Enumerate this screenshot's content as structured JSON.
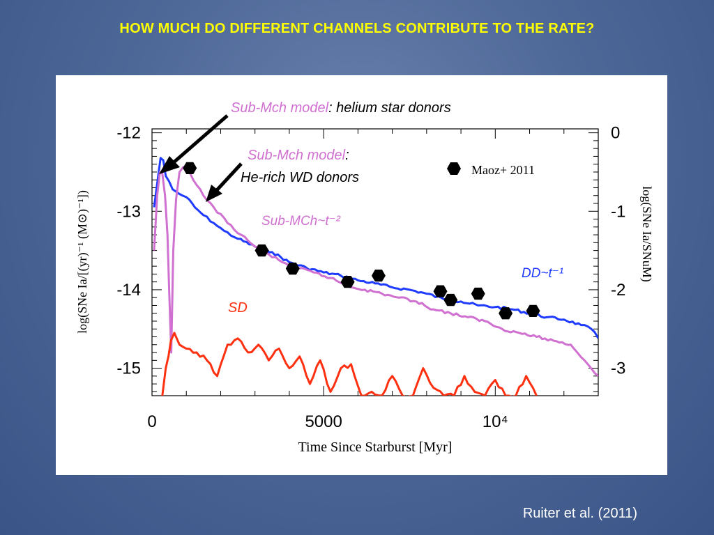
{
  "slide": {
    "title": "HOW MUCH DO DIFFERENT CHANNELS CONTRIBUTE TO THE RATE?",
    "citation": "Ruiter et al. (2011)"
  },
  "colors": {
    "background": "#4e6898",
    "title": "#ffff00",
    "blue_series": "#1f3bff",
    "magenta_series": "#d070d0",
    "red_series": "#ff3010",
    "points": "#000000"
  },
  "chart_data": {
    "type": "line",
    "xlabel": "Time Since Starburst [Myr]",
    "ylabel": "log(SNe Ia/[(yr)⁻¹ (M⊙)⁻¹])",
    "ylabel_right": "log(SNe Ia/SNuM)",
    "xlim": [
      0,
      13000
    ],
    "ylim": [
      -15.35,
      -11.95
    ],
    "x_ticks": [
      {
        "value": 0,
        "label": "0"
      },
      {
        "value": 5000,
        "label": "5000"
      },
      {
        "value": 10000,
        "label": "10⁴"
      }
    ],
    "y_ticks": [
      {
        "value": -12,
        "label": "-12"
      },
      {
        "value": -13,
        "label": "-13"
      },
      {
        "value": -14,
        "label": "-14"
      },
      {
        "value": -15,
        "label": "-15"
      }
    ],
    "y_ticks_right": [
      {
        "value": -12,
        "label": "0"
      },
      {
        "value": -13,
        "label": "-1"
      },
      {
        "value": -14,
        "label": "-2"
      },
      {
        "value": -15,
        "label": "-3"
      }
    ],
    "grid": false,
    "legend_position": "top-right",
    "series": [
      {
        "name": "DD~t⁻¹",
        "color": "#1f3bff",
        "x": [
          60,
          150,
          250,
          330,
          400,
          500,
          600,
          800,
          1000,
          1250,
          1500,
          1800,
          2100,
          2500,
          3000,
          3500,
          4000,
          4500,
          5000,
          5500,
          6000,
          6500,
          7000,
          7500,
          8000,
          8500,
          9000,
          9500,
          10000,
          10500,
          11000,
          11500,
          12000,
          12500,
          12800,
          13000
        ],
        "y": [
          -12.95,
          -12.65,
          -12.32,
          -12.35,
          -12.55,
          -12.62,
          -12.72,
          -12.78,
          -12.82,
          -12.95,
          -13.05,
          -13.15,
          -13.25,
          -13.35,
          -13.45,
          -13.52,
          -13.65,
          -13.72,
          -13.78,
          -13.82,
          -13.88,
          -13.92,
          -13.97,
          -14.0,
          -14.05,
          -14.12,
          -14.15,
          -14.2,
          -14.22,
          -14.25,
          -14.3,
          -14.35,
          -14.38,
          -14.45,
          -14.5,
          -14.62
        ]
      },
      {
        "name": "Sub-MCh~t⁻²",
        "color": "#d070d0",
        "x": [
          60,
          150,
          230,
          300,
          380,
          450,
          500,
          560,
          620,
          700,
          800,
          1000,
          1200,
          1500,
          1800,
          2200,
          2600,
          3000,
          3400,
          3800,
          4200,
          4700,
          5200,
          5700,
          6200,
          6700,
          7200,
          7700,
          8200,
          8700,
          9200,
          9700,
          10200,
          10700,
          11200,
          11700,
          12200,
          12600,
          13000
        ],
        "y": [
          -13.5,
          -12.8,
          -12.5,
          -12.52,
          -12.8,
          -13.3,
          -14.0,
          -14.8,
          -13.5,
          -12.85,
          -12.5,
          -12.42,
          -12.6,
          -12.8,
          -12.95,
          -13.15,
          -13.3,
          -13.45,
          -13.55,
          -13.65,
          -13.72,
          -13.78,
          -13.85,
          -13.95,
          -14.0,
          -14.05,
          -14.1,
          -14.15,
          -14.25,
          -14.3,
          -14.35,
          -14.4,
          -14.5,
          -14.55,
          -14.6,
          -14.65,
          -14.7,
          -14.9,
          -15.1
        ]
      },
      {
        "name": "SD",
        "color": "#ff3010",
        "x": [
          300,
          400,
          480,
          550,
          650,
          800,
          1000,
          1300,
          1600,
          1900,
          2200,
          2500,
          2800,
          3100,
          3400,
          3700,
          4000,
          4300,
          4600,
          4900,
          5200,
          5500,
          5800,
          6100,
          6400,
          6700,
          7000,
          7300,
          7600,
          7900,
          8200,
          8500,
          8800,
          9100,
          9400,
          9700,
          10000,
          10300,
          10600,
          10900,
          11200
        ],
        "y": [
          -15.35,
          -15.0,
          -14.85,
          -14.65,
          -14.55,
          -14.7,
          -14.75,
          -14.8,
          -14.9,
          -15.1,
          -14.7,
          -14.62,
          -14.8,
          -14.7,
          -14.9,
          -14.75,
          -15.0,
          -14.85,
          -15.2,
          -14.9,
          -15.3,
          -15.0,
          -14.95,
          -15.35,
          -15.3,
          -15.35,
          -15.1,
          -15.35,
          -15.35,
          -15.0,
          -15.25,
          -15.35,
          -15.35,
          -15.1,
          -15.3,
          -15.35,
          -15.15,
          -15.35,
          -15.35,
          -15.1,
          -15.35
        ]
      }
    ],
    "points": {
      "name": "Maoz+ 2011",
      "x": [
        1100,
        3200,
        4100,
        5700,
        6600,
        8400,
        8700,
        9500,
        10300,
        11100
      ],
      "y": [
        -12.45,
        -13.5,
        -13.73,
        -13.9,
        -13.82,
        -14.02,
        -14.13,
        -14.05,
        -14.3,
        -14.27
      ]
    },
    "annotations": [
      {
        "id": "subch-helium-lead",
        "text": "Sub-Mch model",
        "color": "#d070d0"
      },
      {
        "id": "subch-helium-rest",
        "text": ": helium star donors",
        "color": "#000000"
      },
      {
        "id": "subch-hewd-lead",
        "text": "Sub-Mch model",
        "color": "#d070d0"
      },
      {
        "id": "subch-hewd-colon",
        "text": ":",
        "color": "#000000"
      },
      {
        "id": "subch-hewd-line2",
        "text": "He-rich WD donors",
        "color": "#000000"
      },
      {
        "id": "subch-scaling",
        "text": "Sub-MCh~t⁻²",
        "color": "#d070d0"
      },
      {
        "id": "dd-scaling",
        "text": "DD~t⁻¹",
        "color": "#1f3bff"
      },
      {
        "id": "sd-label",
        "text": "SD",
        "color": "#ff3010"
      }
    ]
  }
}
